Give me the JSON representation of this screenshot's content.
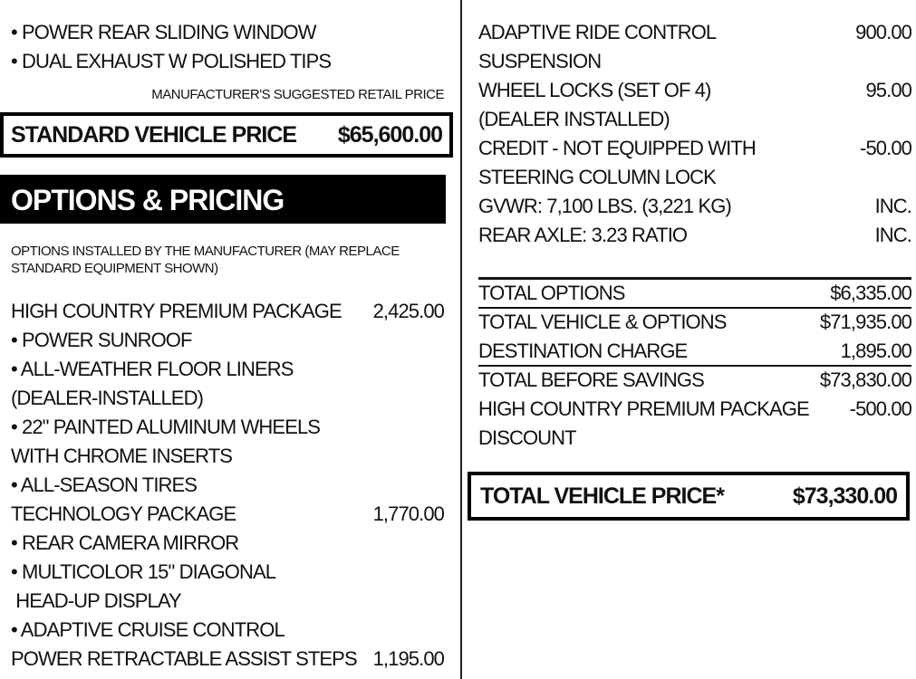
{
  "left_top_items": [
    "• POWER REAR SLIDING WINDOW",
    "• DUAL EXHAUST W POLISHED TIPS"
  ],
  "msrp_label": "MANUFACTURER'S SUGGESTED RETAIL PRICE",
  "standard_price": {
    "label": "STANDARD VEHICLE PRICE",
    "value": "$65,600.00"
  },
  "options_header": "OPTIONS & PRICING",
  "options_note": "OPTIONS INSTALLED BY THE MANUFACTURER (MAY REPLACE STANDARD EQUIPMENT SHOWN)",
  "left_options": [
    {
      "label": "HIGH COUNTRY PREMIUM PACKAGE",
      "value": "2,425.00"
    },
    {
      "label": "• POWER SUNROOF",
      "value": ""
    },
    {
      "label": "• ALL-WEATHER FLOOR LINERS",
      "value": ""
    },
    {
      "label": "(DEALER-INSTALLED)",
      "value": ""
    },
    {
      "label": "• 22\" PAINTED ALUMINUM WHEELS",
      "value": ""
    },
    {
      "label": "WITH CHROME INSERTS",
      "value": ""
    },
    {
      "label": "• ALL-SEASON TIRES",
      "value": ""
    },
    {
      "label": "TECHNOLOGY PACKAGE",
      "value": "1,770.00"
    },
    {
      "label": "• REAR CAMERA MIRROR",
      "value": ""
    },
    {
      "label": "• MULTICOLOR 15\" DIAGONAL",
      "value": ""
    },
    {
      "label": " HEAD-UP DISPLAY",
      "value": ""
    },
    {
      "label": "• ADAPTIVE CRUISE CONTROL",
      "value": ""
    },
    {
      "label": "POWER RETRACTABLE ASSIST STEPS",
      "value": "1,195.00"
    }
  ],
  "right_options": [
    {
      "label": "ADAPTIVE RIDE CONTROL",
      "value": "900.00"
    },
    {
      "label": "SUSPENSION",
      "value": ""
    },
    {
      "label": "WHEEL LOCKS (SET OF 4)",
      "value": "95.00"
    },
    {
      "label": "(DEALER INSTALLED)",
      "value": ""
    },
    {
      "label": "CREDIT - NOT EQUIPPED WITH",
      "value": "-50.00"
    },
    {
      "label": "STEERING COLUMN LOCK",
      "value": ""
    },
    {
      "label": "GVWR: 7,100 LBS. (3,221 KG)",
      "value": "INC."
    },
    {
      "label": "REAR AXLE: 3.23 RATIO",
      "value": "INC."
    }
  ],
  "totals": [
    {
      "label": "TOTAL OPTIONS",
      "value": "$6,335.00"
    },
    {
      "label": "TOTAL VEHICLE & OPTIONS",
      "value": "$71,935.00"
    },
    {
      "label": "DESTINATION CHARGE",
      "value": "1,895.00"
    },
    {
      "label": "TOTAL BEFORE SAVINGS",
      "value": "$73,830.00"
    },
    {
      "label": "HIGH COUNTRY PREMIUM PACKAGE",
      "value": "-500.00"
    },
    {
      "label": "DISCOUNT",
      "value": ""
    }
  ],
  "total_price": {
    "label": "TOTAL VEHICLE PRICE*",
    "value": "$73,330.00"
  }
}
